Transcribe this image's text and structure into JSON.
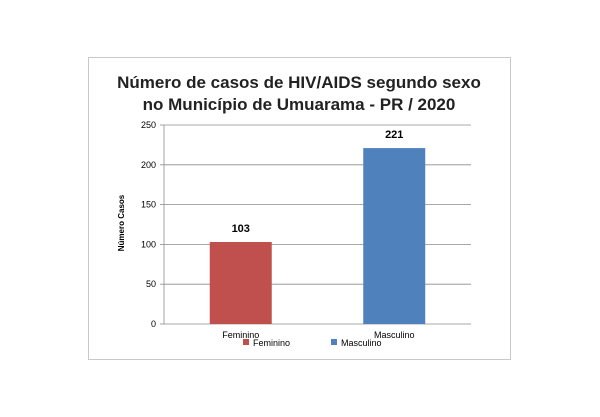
{
  "chart_data": {
    "type": "bar",
    "title_lines": [
      "Número de casos de HIV/AIDS segundo sexo",
      "no Município de Umuarama - PR / 2020"
    ],
    "ylabel": "Número Casos",
    "xlabel": "",
    "ylim": [
      0,
      250
    ],
    "yticks": [
      0,
      50,
      100,
      150,
      200,
      250
    ],
    "categories": [
      "Feminino",
      "Masculino"
    ],
    "values": [
      103,
      221
    ],
    "colors": [
      "#c0504d",
      "#4f81bd"
    ],
    "data_labels": [
      "103",
      "221"
    ],
    "grid": true,
    "legend": {
      "position": "bottom",
      "entries": [
        "Feminino",
        "Masculino"
      ]
    }
  }
}
